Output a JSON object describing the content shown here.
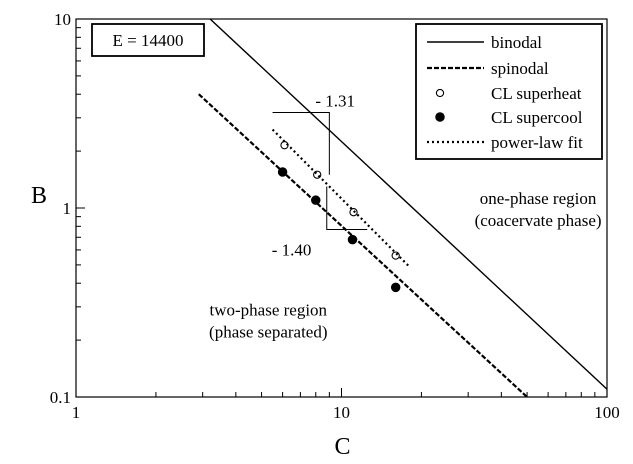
{
  "chart_data": {
    "type": "scatter",
    "xlabel": "C",
    "ylabel": "B",
    "x_scale": "log",
    "y_scale": "log",
    "xlim": [
      1,
      100
    ],
    "ylim": [
      0.1,
      10
    ],
    "x_ticks": [
      "1",
      "10",
      "100"
    ],
    "y_ticks": [
      "0.1",
      "1",
      "10"
    ],
    "grid": false,
    "legend_position": "top-right",
    "annotation_box": "E = 14400",
    "series": [
      {
        "name": "binodal",
        "style": "solid-line",
        "x": [
          3.2,
          100
        ],
        "y": [
          10,
          0.11
        ]
      },
      {
        "name": "spinodal",
        "style": "dashed-line",
        "x": [
          2.9,
          50
        ],
        "y": [
          4.0,
          0.1
        ]
      },
      {
        "name": "CL superheat",
        "style": "open-circle",
        "x": [
          6.1,
          8.1,
          11.1,
          16.0
        ],
        "y": [
          2.15,
          1.5,
          0.95,
          0.56
        ]
      },
      {
        "name": "CL supercool",
        "style": "filled-circle",
        "x": [
          6.0,
          8.0,
          11.0,
          16.0
        ],
        "y": [
          1.55,
          1.1,
          0.68,
          0.38
        ]
      },
      {
        "name": "power-law fit",
        "style": "dotted-line",
        "x": [
          5.5,
          18.0
        ],
        "y": [
          2.6,
          0.49
        ]
      }
    ],
    "slope_annotations": [
      {
        "label": "- 1.31",
        "triangle_x": [
          5.5,
          9.0
        ],
        "triangle_y": [
          3.2,
          1.5
        ]
      },
      {
        "label": "- 1.40",
        "triangle_x": [
          8.8,
          12.5
        ],
        "triangle_y": [
          1.3,
          0.77
        ]
      }
    ],
    "region_labels": [
      {
        "lines": [
          "one-phase region",
          "(coacervate phase)"
        ],
        "x": 55,
        "y": 1.05
      },
      {
        "lines": [
          "two-phase region",
          "(phase separated)"
        ],
        "x": 5.3,
        "y": 0.27
      }
    ]
  }
}
